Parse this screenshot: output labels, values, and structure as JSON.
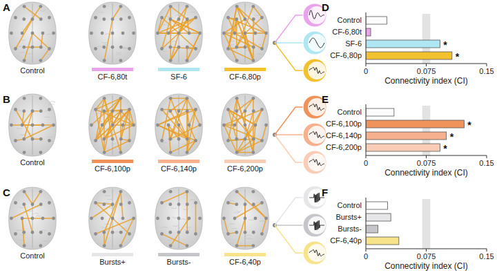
{
  "figure": {
    "rows": [
      {
        "letter": "A",
        "brains": [
          {
            "label": "Control"
          },
          {
            "label": "CF-6,80t",
            "color": "#e9a3ea"
          },
          {
            "label": "SF-6",
            "color": "#aee6f2"
          },
          {
            "label": "CF-6,80p",
            "color": "#f2c12e"
          }
        ]
      },
      {
        "letter": "B",
        "brains": [
          {
            "label": "Control"
          },
          {
            "label": "CF-6,100p",
            "color": "#f0935a"
          },
          {
            "label": "CF-6,140p",
            "color": "#f6b08e"
          },
          {
            "label": "CF-6,200p",
            "color": "#f9cdb5"
          }
        ]
      },
      {
        "letter": "C",
        "brains": [
          {
            "label": "Control"
          },
          {
            "label": "Bursts+",
            "color": "#e6e6e9"
          },
          {
            "label": "Bursts-",
            "color": "#c6c6ca"
          },
          {
            "label": "CF-6,40p",
            "color": "#f7e38a"
          }
        ]
      }
    ]
  },
  "chart_data": [
    {
      "type": "bar",
      "title": "D",
      "orientation": "horizontal",
      "categories": [
        "Control",
        "CF-6,80t",
        "SF-6",
        "CF-6,80p"
      ],
      "values": [
        0.026,
        0.006,
        0.092,
        0.107
      ],
      "colors": [
        "#ffffff",
        "#e9a3ea",
        "#aee6f2",
        "#f2c12e"
      ],
      "xlim": [
        0,
        0.15
      ],
      "xticks": [
        0,
        0.075,
        0.15
      ],
      "x_label": "Connectivity index (CI)",
      "band": [
        0.07,
        0.08
      ],
      "significance": [
        null,
        null,
        "*",
        "*"
      ]
    },
    {
      "type": "bar",
      "title": "E",
      "orientation": "horizontal",
      "categories": [
        "Control",
        "CF-6,100p",
        "CF-6,140p",
        "CF-6,200p"
      ],
      "values": [
        0.035,
        0.122,
        0.1,
        0.092
      ],
      "colors": [
        "#ffffff",
        "#f0935a",
        "#f6b08e",
        "#f9cdb5"
      ],
      "xlim": [
        0,
        0.15
      ],
      "xticks": [
        0,
        0.075,
        0.15
      ],
      "x_label": "Connectivity index (CI)",
      "band": [
        0.07,
        0.08
      ],
      "significance": [
        null,
        "*",
        "*",
        "*"
      ]
    },
    {
      "type": "bar",
      "title": "F",
      "orientation": "horizontal",
      "categories": [
        "Control",
        "Bursts+",
        "Bursts-",
        "CF-6,40p"
      ],
      "values": [
        0.027,
        0.031,
        0.015,
        0.041
      ],
      "colors": [
        "#ffffff",
        "#e6e6e9",
        "#c6c6ca",
        "#f7e38a"
      ],
      "xlim": [
        0,
        0.15
      ],
      "xticks": [
        0,
        0.075,
        0.15
      ],
      "x_label": "Connectivity index (CI)",
      "band": [
        0.07,
        0.08
      ],
      "significance": [
        null,
        null,
        null,
        null
      ]
    }
  ]
}
